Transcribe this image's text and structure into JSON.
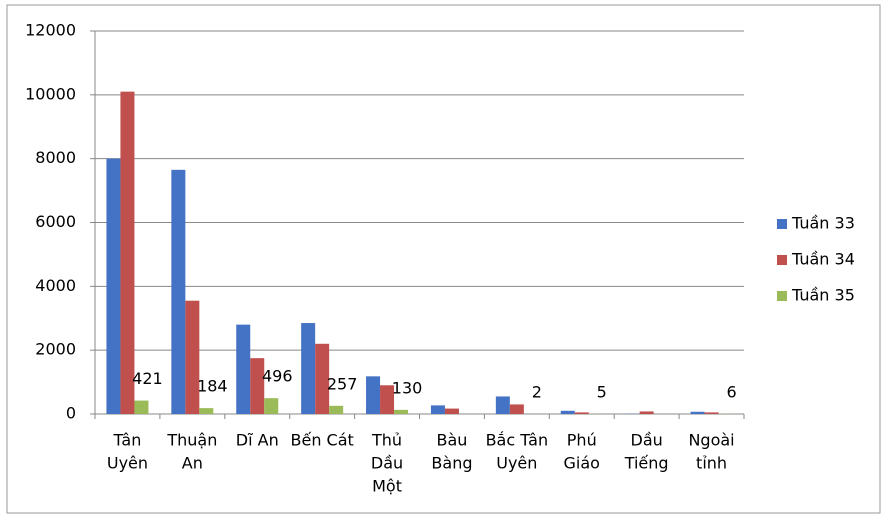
{
  "chart_data": {
    "type": "bar",
    "categories": [
      [
        "Tân",
        "Uyên"
      ],
      [
        "Thuận",
        "An"
      ],
      [
        "Dĩ An"
      ],
      [
        "Bến Cát"
      ],
      [
        "Thủ",
        "Dầu",
        "Một"
      ],
      [
        "Bàu",
        "Bàng"
      ],
      [
        "Bắc Tân",
        "Uyên"
      ],
      [
        "Phú",
        "Giáo"
      ],
      [
        "Dầu",
        "Tiếng"
      ],
      [
        "Ngoài",
        "tỉnh"
      ]
    ],
    "series": [
      {
        "name": "Tuần 33",
        "color": "#4472c4",
        "values": [
          8000,
          7650,
          2800,
          2850,
          1180,
          270,
          550,
          100,
          10,
          70
        ]
      },
      {
        "name": "Tuần 34",
        "color": "#c0504d",
        "values": [
          10100,
          3550,
          1750,
          2200,
          900,
          170,
          300,
          50,
          80,
          50
        ]
      },
      {
        "name": "Tuần 35",
        "color": "#9bbb59",
        "values": [
          421,
          184,
          496,
          257,
          130,
          null,
          2,
          5,
          null,
          6
        ],
        "data_labels": true
      }
    ],
    "ylim": [
      0,
      12000
    ],
    "yticks": [
      0,
      2000,
      4000,
      6000,
      8000,
      10000,
      12000
    ],
    "grid": true,
    "legend": "right"
  }
}
